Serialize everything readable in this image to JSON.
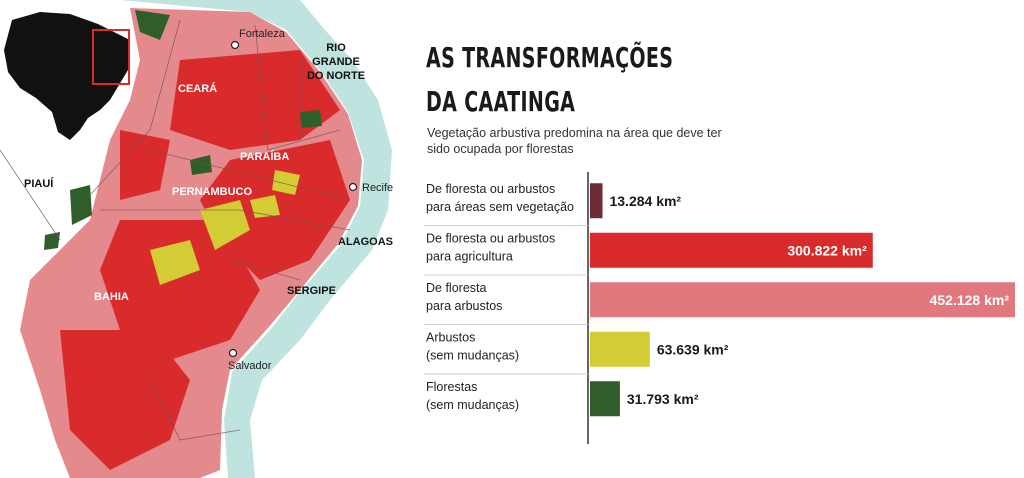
{
  "title_lines": [
    "AS TRANSFORMAÇÕES",
    "DA CAATINGA"
  ],
  "subtitle": "Vegetação arbustiva predomina na área que deve ter sido ocupada por florestas",
  "colors": {
    "sem_vegetacao": "#6e2c37",
    "agricultura": "#d92b2b",
    "arbustos": "#e0787e",
    "arbustos_sem_mudanca": "#d4cc35",
    "florestas": "#2f5e2b",
    "ocean": "#bfe3df",
    "map_base": "#e58a8c"
  },
  "map": {
    "states": [
      "CEARÁ",
      "RIO",
      "GRANDE",
      "DO NORTE",
      "PARAÍBA",
      "PERNAMBUCO",
      "PIAUÍ",
      "ALAGOAS",
      "SERGIPE",
      "BAHIA"
    ],
    "cities": [
      "Fortaleza",
      "Recife",
      "Salvador"
    ]
  },
  "chart_data": {
    "type": "bar",
    "orientation": "horizontal",
    "categories": [
      [
        "De floresta ou arbustos",
        "para áreas sem vegetação"
      ],
      [
        "De floresta ou arbustos",
        "para agricultura"
      ],
      [
        "De floresta",
        "para arbustos"
      ],
      [
        "Arbustos",
        "(sem mudanças)"
      ],
      [
        "Florestas",
        "(sem mudanças)"
      ]
    ],
    "values": [
      13284,
      300822,
      452128,
      63639,
      31793
    ],
    "value_labels": [
      "13.284 km²",
      "300.822 km²",
      "452.128 km²",
      "63.639 km²",
      "31.793 km²"
    ],
    "bar_colors": [
      "#6e2c37",
      "#d92b2b",
      "#e0787e",
      "#d4cc35",
      "#2f5e2b"
    ],
    "unit": "km²"
  }
}
